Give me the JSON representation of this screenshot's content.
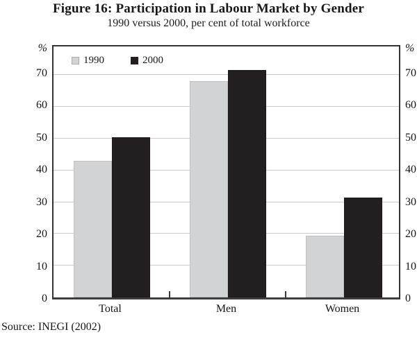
{
  "chart_data": {
    "type": "bar",
    "title": "Figure 16: Participation in Labour Market by Gender",
    "subtitle": "1990 versus 2000, per cent of total workforce",
    "categories": [
      "Total",
      "Men",
      "Women"
    ],
    "series": [
      {
        "name": "1990",
        "color": "#d2d3d5",
        "values": [
          43,
          68,
          19.5
        ]
      },
      {
        "name": "2000",
        "color": "#231f20",
        "values": [
          50.5,
          71.5,
          31.5
        ]
      }
    ],
    "xlabel": "",
    "ylabel": "%",
    "axis_unit_left": "%",
    "axis_unit_right": "%",
    "ylim": [
      0,
      79
    ],
    "yticks": [
      0,
      10,
      20,
      30,
      40,
      50,
      60,
      70
    ],
    "grid": true,
    "legend_position": "top-left-inside"
  },
  "source_note": "Source: INEGI (2002)"
}
